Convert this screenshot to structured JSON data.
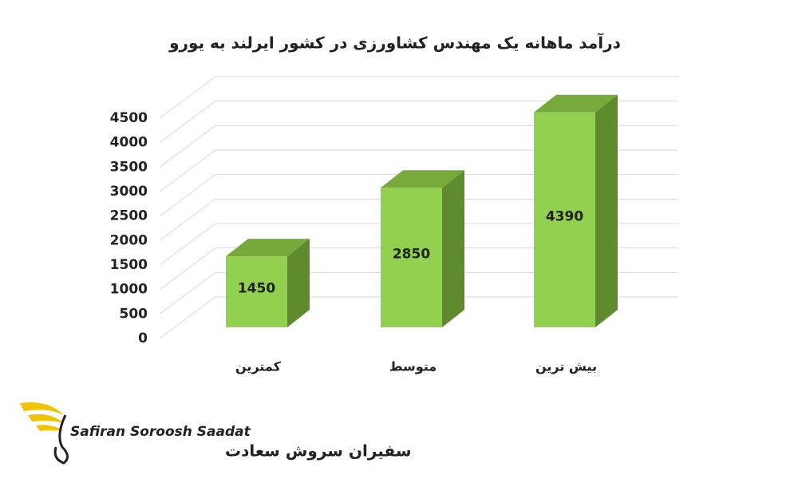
{
  "chart_data": {
    "type": "bar3d",
    "title": "درآمد ماهانه یک مهندس کشاورزی در کشور ایرلند به یورو",
    "categories": [
      "کمترین",
      "متوسط",
      "بیش ترین"
    ],
    "values": [
      1450,
      2850,
      4390
    ],
    "color": "#92d050",
    "ylim": [
      0,
      4500
    ],
    "yticks": [
      0,
      500,
      1000,
      1500,
      2000,
      2500,
      3000,
      3500,
      4000,
      4500
    ],
    "grid": true
  },
  "logo": {
    "name_en": "Safiran Soroosh Saadat",
    "name_fa": "سفیران سروش سعادت"
  }
}
